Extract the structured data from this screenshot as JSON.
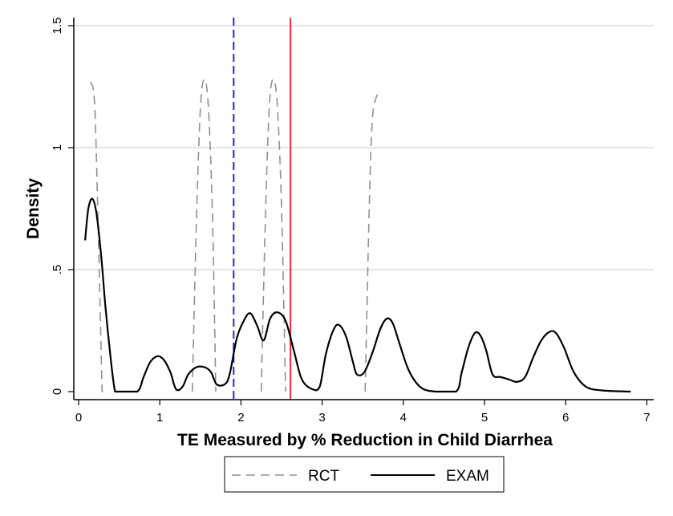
{
  "chart_data": {
    "type": "line",
    "title": "",
    "xlabel": "TE Measured by % Reduction in Child Diarrhea",
    "ylabel": "Density",
    "xlim": [
      0,
      7
    ],
    "ylim": [
      0,
      1.5
    ],
    "xticks": [
      0,
      1,
      2,
      3,
      4,
      5,
      6,
      7
    ],
    "xtick_labels": [
      "0",
      "1",
      "2",
      "3",
      "4",
      "5",
      "6",
      "7"
    ],
    "yticks": [
      0,
      0.5,
      1,
      1.5
    ],
    "ytick_labels": [
      "0",
      ".5",
      "1",
      "1.5"
    ],
    "grid": "horizontal",
    "legend_position": "bottom",
    "series": [
      {
        "name": "RCT",
        "style": "dashed",
        "color": "#909090",
        "segments": [
          [
            [
              0.15,
              1.27
            ],
            [
              0.2,
              1.16
            ],
            [
              0.25,
              0.55
            ],
            [
              0.29,
              0.0
            ],
            [
              0.3,
              0.0
            ]
          ],
          [
            [
              1.4,
              0.0
            ],
            [
              1.45,
              0.68
            ],
            [
              1.5,
              1.16
            ],
            [
              1.55,
              1.28
            ],
            [
              1.6,
              1.16
            ],
            [
              1.65,
              0.7
            ],
            [
              1.69,
              0.0
            ]
          ],
          [
            [
              2.25,
              0.0
            ],
            [
              2.3,
              0.7
            ],
            [
              2.35,
              1.17
            ],
            [
              2.4,
              1.28
            ],
            [
              2.45,
              1.16
            ],
            [
              2.5,
              0.75
            ],
            [
              2.55,
              0.0
            ]
          ],
          [
            [
              3.53,
              0.0
            ],
            [
              3.58,
              0.75
            ],
            [
              3.62,
              1.12
            ],
            [
              3.68,
              1.22
            ]
          ]
        ]
      },
      {
        "name": "EXAM",
        "style": "solid",
        "color": "#000000",
        "points": [
          [
            0.08,
            0.62
          ],
          [
            0.12,
            0.75
          ],
          [
            0.17,
            0.79
          ],
          [
            0.22,
            0.73
          ],
          [
            0.28,
            0.55
          ],
          [
            0.33,
            0.35
          ],
          [
            0.4,
            0.12
          ],
          [
            0.45,
            0.0
          ],
          [
            0.5,
            0.0
          ],
          [
            0.72,
            0.0
          ],
          [
            0.8,
            0.06
          ],
          [
            0.88,
            0.12
          ],
          [
            0.97,
            0.145
          ],
          [
            1.05,
            0.13
          ],
          [
            1.13,
            0.08
          ],
          [
            1.2,
            0.01
          ],
          [
            1.28,
            0.02
          ],
          [
            1.35,
            0.07
          ],
          [
            1.45,
            0.1
          ],
          [
            1.55,
            0.1
          ],
          [
            1.63,
            0.08
          ],
          [
            1.7,
            0.03
          ],
          [
            1.8,
            0.03
          ],
          [
            1.86,
            0.07
          ],
          [
            1.95,
            0.22
          ],
          [
            2.05,
            0.3
          ],
          [
            2.12,
            0.32
          ],
          [
            2.2,
            0.27
          ],
          [
            2.28,
            0.21
          ],
          [
            2.36,
            0.3
          ],
          [
            2.45,
            0.325
          ],
          [
            2.55,
            0.29
          ],
          [
            2.65,
            0.17
          ],
          [
            2.75,
            0.05
          ],
          [
            2.88,
            0.01
          ],
          [
            2.97,
            0.02
          ],
          [
            3.05,
            0.16
          ],
          [
            3.15,
            0.26
          ],
          [
            3.22,
            0.27
          ],
          [
            3.3,
            0.22
          ],
          [
            3.38,
            0.12
          ],
          [
            3.43,
            0.07
          ],
          [
            3.52,
            0.08
          ],
          [
            3.62,
            0.16
          ],
          [
            3.72,
            0.26
          ],
          [
            3.8,
            0.3
          ],
          [
            3.87,
            0.28
          ],
          [
            3.95,
            0.2
          ],
          [
            4.05,
            0.1
          ],
          [
            4.15,
            0.04
          ],
          [
            4.25,
            0.01
          ],
          [
            4.4,
            0.0
          ],
          [
            4.65,
            0.0
          ],
          [
            4.72,
            0.08
          ],
          [
            4.8,
            0.18
          ],
          [
            4.88,
            0.24
          ],
          [
            4.95,
            0.23
          ],
          [
            5.02,
            0.17
          ],
          [
            5.1,
            0.07
          ],
          [
            5.2,
            0.06
          ],
          [
            5.3,
            0.05
          ],
          [
            5.4,
            0.04
          ],
          [
            5.5,
            0.06
          ],
          [
            5.6,
            0.14
          ],
          [
            5.7,
            0.21
          ],
          [
            5.8,
            0.245
          ],
          [
            5.88,
            0.24
          ],
          [
            5.98,
            0.18
          ],
          [
            6.1,
            0.08
          ],
          [
            6.25,
            0.02
          ],
          [
            6.45,
            0.005
          ],
          [
            6.8,
            0.0
          ]
        ]
      }
    ],
    "reference_lines": [
      {
        "x": 1.91,
        "style": "dashed",
        "color": "#2a2acc"
      },
      {
        "x": 2.61,
        "style": "solid",
        "color": "#e03030"
      }
    ]
  }
}
